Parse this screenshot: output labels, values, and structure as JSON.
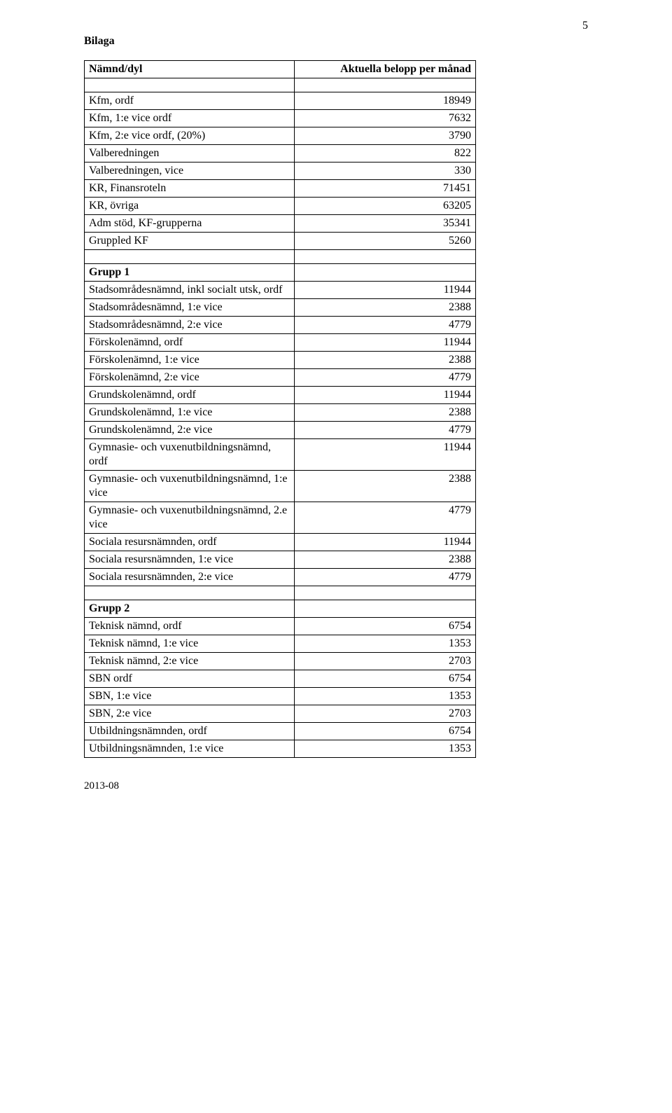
{
  "page_number": "5",
  "heading": "Bilaga",
  "footer": "2013-08",
  "header_row": {
    "left": "Nämnd/dyl",
    "right": "Aktuella belopp per månad"
  },
  "group1_label": "Grupp 1",
  "group2_label": "Grupp 2",
  "top_rows": [
    {
      "l": "Kfm, ordf",
      "r": "18949"
    },
    {
      "l": "Kfm, 1:e vice ordf",
      "r": "7632"
    },
    {
      "l": "Kfm, 2:e vice ordf, (20%)",
      "r": "3790"
    },
    {
      "l": "Valberedningen",
      "r": "822"
    },
    {
      "l": "Valberedningen, vice",
      "r": "330"
    },
    {
      "l": "KR, Finansroteln",
      "r": "71451"
    },
    {
      "l": "KR, övriga",
      "r": "63205"
    },
    {
      "l": "Adm stöd, KF-grupperna",
      "r": "35341"
    },
    {
      "l": "Gruppled KF",
      "r": "5260"
    }
  ],
  "group1_rows": [
    {
      "l": "Stadsområdesnämnd, inkl socialt utsk, ordf",
      "r": "11944"
    },
    {
      "l": "Stadsområdesnämnd, 1:e vice",
      "r": "2388"
    },
    {
      "l": "Stadsområdesnämnd, 2:e vice",
      "r": "4779"
    },
    {
      "l": "Förskolenämnd, ordf",
      "r": "11944"
    },
    {
      "l": "Förskolenämnd, 1:e vice",
      "r": "2388"
    },
    {
      "l": "Förskolenämnd, 2:e vice",
      "r": "4779"
    },
    {
      "l": "Grundskolenämnd, ordf",
      "r": "11944"
    },
    {
      "l": "Grundskolenämnd, 1:e vice",
      "r": "2388"
    },
    {
      "l": "Grundskolenämnd, 2:e vice",
      "r": "4779"
    },
    {
      "l": "Gymnasie- och vuxenutbildningsnämnd, ordf",
      "r": "11944"
    },
    {
      "l": "Gymnasie- och vuxenutbildningsnämnd, 1:e vice",
      "r": "2388"
    },
    {
      "l": "Gymnasie- och vuxenutbildningsnämnd, 2.e vice",
      "r": "4779"
    },
    {
      "l": "Sociala resursnämnden, ordf",
      "r": "11944"
    },
    {
      "l": "Sociala resursnämnden, 1:e vice",
      "r": "2388"
    },
    {
      "l": "Sociala resursnämnden, 2:e vice",
      "r": "4779"
    }
  ],
  "group2_rows": [
    {
      "l": "Teknisk nämnd, ordf",
      "r": "6754"
    },
    {
      "l": "Teknisk nämnd, 1:e vice",
      "r": "1353"
    },
    {
      "l": "Teknisk nämnd, 2:e vice",
      "r": "2703"
    },
    {
      "l": "SBN ordf",
      "r": "6754"
    },
    {
      "l": "SBN, 1:e vice",
      "r": "1353"
    },
    {
      "l": "SBN, 2:e vice",
      "r": "2703"
    },
    {
      "l": "Utbildningsnämnden, ordf",
      "r": "6754"
    },
    {
      "l": "Utbildningsnämnden, 1:e vice",
      "r": "1353"
    }
  ]
}
